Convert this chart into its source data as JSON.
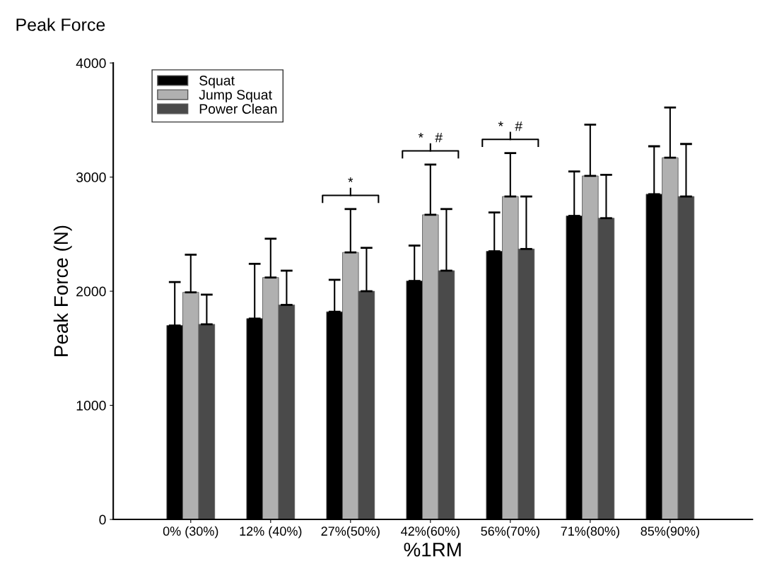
{
  "chart_data": {
    "type": "bar",
    "title": "Peak Force",
    "xlabel": "%1RM",
    "ylabel": "Peak Force (N)",
    "categories": [
      "0% (30%)",
      "12% (40%)",
      "27%(50%)",
      "42%(60%)",
      "56%(70%)",
      "71%(80%)",
      "85%(90%)"
    ],
    "series": [
      {
        "name": "Squat",
        "color": "#000000",
        "values": [
          1700,
          1760,
          1820,
          2090,
          2350,
          2660,
          2850
        ],
        "errors": [
          [
            1700,
            2080
          ],
          [
            1760,
            2240
          ],
          [
            1820,
            2100
          ],
          [
            2090,
            2400
          ],
          [
            2350,
            2690
          ],
          [
            2660,
            3050
          ],
          [
            2850,
            3270
          ]
        ]
      },
      {
        "name": "Jump Squat",
        "color": "#b0b0b0",
        "values": [
          1990,
          2120,
          2340,
          2670,
          2830,
          3010,
          3170
        ],
        "errors": [
          [
            1990,
            2320
          ],
          [
            2120,
            2460
          ],
          [
            2340,
            2720
          ],
          [
            2670,
            3110
          ],
          [
            2830,
            3210
          ],
          [
            3010,
            3460
          ],
          [
            3170,
            3610
          ]
        ]
      },
      {
        "name": "Power Clean",
        "color": "#4a4a4a",
        "values": [
          1710,
          1880,
          2000,
          2180,
          2370,
          2640,
          2830
        ],
        "errors": [
          [
            1710,
            1970
          ],
          [
            1880,
            2180
          ],
          [
            2000,
            2380
          ],
          [
            2180,
            2720
          ],
          [
            2370,
            2830
          ],
          [
            2640,
            3020
          ],
          [
            2830,
            3290
          ]
        ]
      }
    ],
    "ylim": [
      0,
      4000
    ],
    "yticks": [
      0,
      1000,
      2000,
      3000,
      4000
    ],
    "grid": false,
    "legend": "top left",
    "annotations": [
      "*",
      "*   #",
      "*   #"
    ]
  }
}
